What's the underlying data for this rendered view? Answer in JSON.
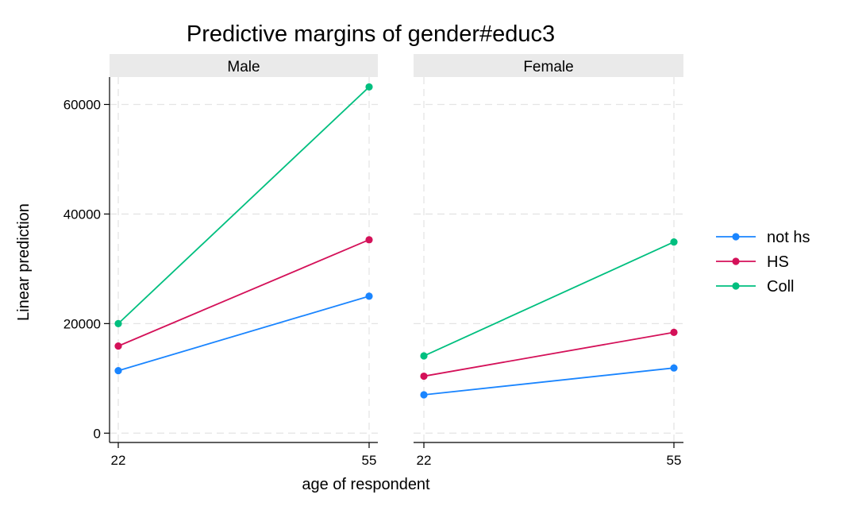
{
  "chart_data": {
    "type": "line",
    "title": "Predictive margins of gender#educ3",
    "xlabel": "age of respondent",
    "ylabel": "Linear prediction",
    "x": [
      22,
      55
    ],
    "x_ticks": [
      "22",
      "55"
    ],
    "y_ticks": [
      0,
      20000,
      40000,
      60000
    ],
    "y_tick_labels": [
      "0",
      "20000",
      "40000",
      "60000"
    ],
    "ylim": [
      -1700,
      65000
    ],
    "grid": true,
    "legend_position": "right",
    "colors": {
      "not hs": "#1a85ff",
      "HS": "#d41159",
      "Coll": "#00bf7f"
    },
    "panels": [
      {
        "label": "Male",
        "series": [
          {
            "name": "not hs",
            "values": [
              11400,
              25000
            ]
          },
          {
            "name": "HS",
            "values": [
              15900,
              35300
            ]
          },
          {
            "name": "Coll",
            "values": [
              20000,
              63200
            ]
          }
        ]
      },
      {
        "label": "Female",
        "series": [
          {
            "name": "not hs",
            "values": [
              7000,
              11900
            ]
          },
          {
            "name": "HS",
            "values": [
              10400,
              18400
            ]
          },
          {
            "name": "Coll",
            "values": [
              14100,
              34900
            ]
          }
        ]
      }
    ]
  }
}
